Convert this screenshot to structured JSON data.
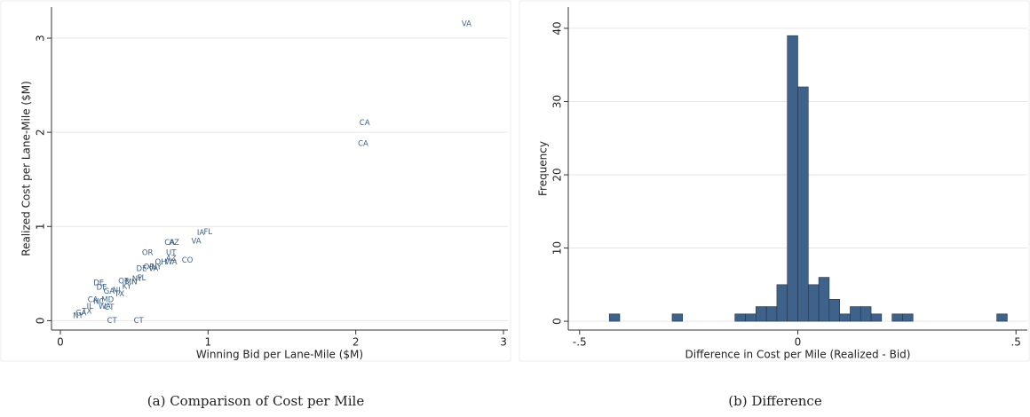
{
  "chart_data": [
    {
      "type": "scatter",
      "caption": "(a) Comparison of Cost per Mile",
      "xlabel": "Winning Bid per Lane-Mile ($M)",
      "ylabel": "Realized Cost per Lane-Mile ($M)",
      "color": "#3e6289",
      "point_labels": [
        "VA",
        "CA",
        "CA",
        "FL",
        "IA",
        "VA",
        "CA",
        "AZ",
        "UT",
        "OR",
        "CO",
        "AZ",
        "OH",
        "WA",
        "NY",
        "DE",
        "OR",
        "VA",
        "FL",
        "NY",
        "MN",
        "DE",
        "OR",
        "DE",
        "NJ",
        "GA",
        "KY",
        "TX",
        "MD",
        "CA",
        "NC",
        "WA",
        "CT",
        "IL",
        "TX",
        "GA",
        "NY",
        "CT",
        "CT"
      ],
      "x": [
        2.75,
        2.06,
        2.05,
        1.0,
        0.95,
        0.92,
        0.74,
        0.77,
        0.75,
        0.59,
        0.86,
        0.75,
        0.68,
        0.75,
        0.65,
        0.55,
        0.6,
        0.63,
        0.55,
        0.52,
        0.48,
        0.26,
        0.43,
        0.28,
        0.38,
        0.33,
        0.45,
        0.4,
        0.32,
        0.22,
        0.26,
        0.3,
        0.33,
        0.2,
        0.18,
        0.14,
        0.12,
        0.35,
        0.53
      ],
      "values": [
        3.15,
        2.1,
        1.88,
        0.94,
        0.93,
        0.84,
        0.83,
        0.83,
        0.72,
        0.72,
        0.64,
        0.66,
        0.62,
        0.62,
        0.57,
        0.55,
        0.57,
        0.55,
        0.45,
        0.44,
        0.41,
        0.4,
        0.42,
        0.35,
        0.32,
        0.31,
        0.36,
        0.28,
        0.22,
        0.22,
        0.2,
        0.15,
        0.14,
        0.15,
        0.1,
        0.08,
        0.05,
        0.0,
        0.0
      ],
      "xlim": [
        -0.06,
        3.03
      ],
      "ylim": [
        -0.1,
        3.33
      ],
      "xticks": [
        0,
        1,
        2,
        3
      ],
      "yticks": [
        0,
        1,
        2,
        3
      ],
      "grid": true
    },
    {
      "type": "histogram",
      "caption": "(b) Difference",
      "xlabel": "Difference in Cost per Mile (Realized - Bid)",
      "ylabel": "Frequency",
      "color": "#3e6289",
      "bins": [
        -0.432,
        -0.408,
        -0.384,
        -0.36,
        -0.336,
        -0.312,
        -0.288,
        -0.264,
        -0.24,
        -0.216,
        -0.192,
        -0.168,
        -0.144,
        -0.12,
        -0.096,
        -0.072,
        -0.048,
        -0.024,
        0,
        0.024,
        0.048,
        0.072,
        0.096,
        0.12,
        0.144,
        0.168,
        0.192,
        0.216,
        0.24,
        0.264,
        0.288,
        0.312,
        0.336,
        0.36,
        0.384,
        0.408,
        0.432,
        0.456,
        0.48
      ],
      "values": [
        1,
        0,
        0,
        0,
        0,
        0,
        1,
        0,
        0,
        0,
        0,
        0,
        1,
        1,
        2,
        2,
        5,
        39,
        32,
        5,
        6,
        3,
        1,
        2,
        2,
        1,
        0,
        1,
        1,
        0,
        0,
        0,
        0,
        0,
        0,
        0,
        0,
        1
      ],
      "xlim": [
        -0.526,
        0.526
      ],
      "ylim": [
        -1.2,
        42.9
      ],
      "xticks": [
        {
          "value": -0.5,
          "label": "-.5"
        },
        0,
        {
          "value": 0.5,
          "label": ".5"
        }
      ],
      "yticks": [
        0,
        10,
        20,
        30,
        40
      ],
      "grid": true
    }
  ]
}
